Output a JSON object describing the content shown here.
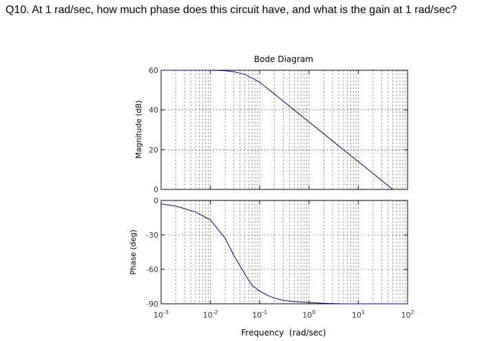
{
  "question": {
    "text": "Q10. At 1 rad/sec, how much phase does this circuit have, and what is the gain at 1 rad/sec?"
  },
  "chart_data": {
    "type": "line",
    "title": "Bode Diagram",
    "xlabel": "Frequency  (rad/sec)",
    "xscale": "log",
    "xlim": [
      0.001,
      100
    ],
    "x_ticks": [
      {
        "base": "10",
        "exp": "-3"
      },
      {
        "base": "10",
        "exp": "-2"
      },
      {
        "base": "10",
        "exp": "-1"
      },
      {
        "base": "10",
        "exp": "0"
      },
      {
        "base": "10",
        "exp": "1"
      },
      {
        "base": "10",
        "exp": "2"
      }
    ],
    "grid": true,
    "line_color": "#000080",
    "panels": [
      {
        "name": "magnitude",
        "ylabel": "Magnitude (dB)",
        "ylim": [
          0,
          60
        ],
        "y_ticks": [
          "0",
          "20",
          "40",
          "60"
        ],
        "x": [
          0.001,
          0.005,
          0.01,
          0.02,
          0.03,
          0.05,
          0.1,
          0.2,
          0.5,
          1,
          2,
          5,
          10,
          20,
          50
        ],
        "y": [
          60,
          60,
          60,
          59.8,
          59.2,
          58,
          54,
          48,
          40,
          34,
          28,
          20,
          14,
          8,
          0
        ]
      },
      {
        "name": "phase",
        "ylabel": "Phase (deg)",
        "ylim": [
          -90,
          0
        ],
        "y_ticks": [
          "-90",
          "-60",
          "-30",
          "0"
        ],
        "x": [
          0.001,
          0.002,
          0.005,
          0.01,
          0.02,
          0.03,
          0.05,
          0.07,
          0.1,
          0.15,
          0.2,
          0.3,
          0.5,
          1,
          2,
          5,
          10,
          100
        ],
        "y": [
          -3,
          -5,
          -10,
          -17,
          -33,
          -48,
          -64,
          -74,
          -79,
          -83,
          -85,
          -87,
          -88,
          -89,
          -89.5,
          -90,
          -90,
          -90
        ]
      }
    ]
  }
}
